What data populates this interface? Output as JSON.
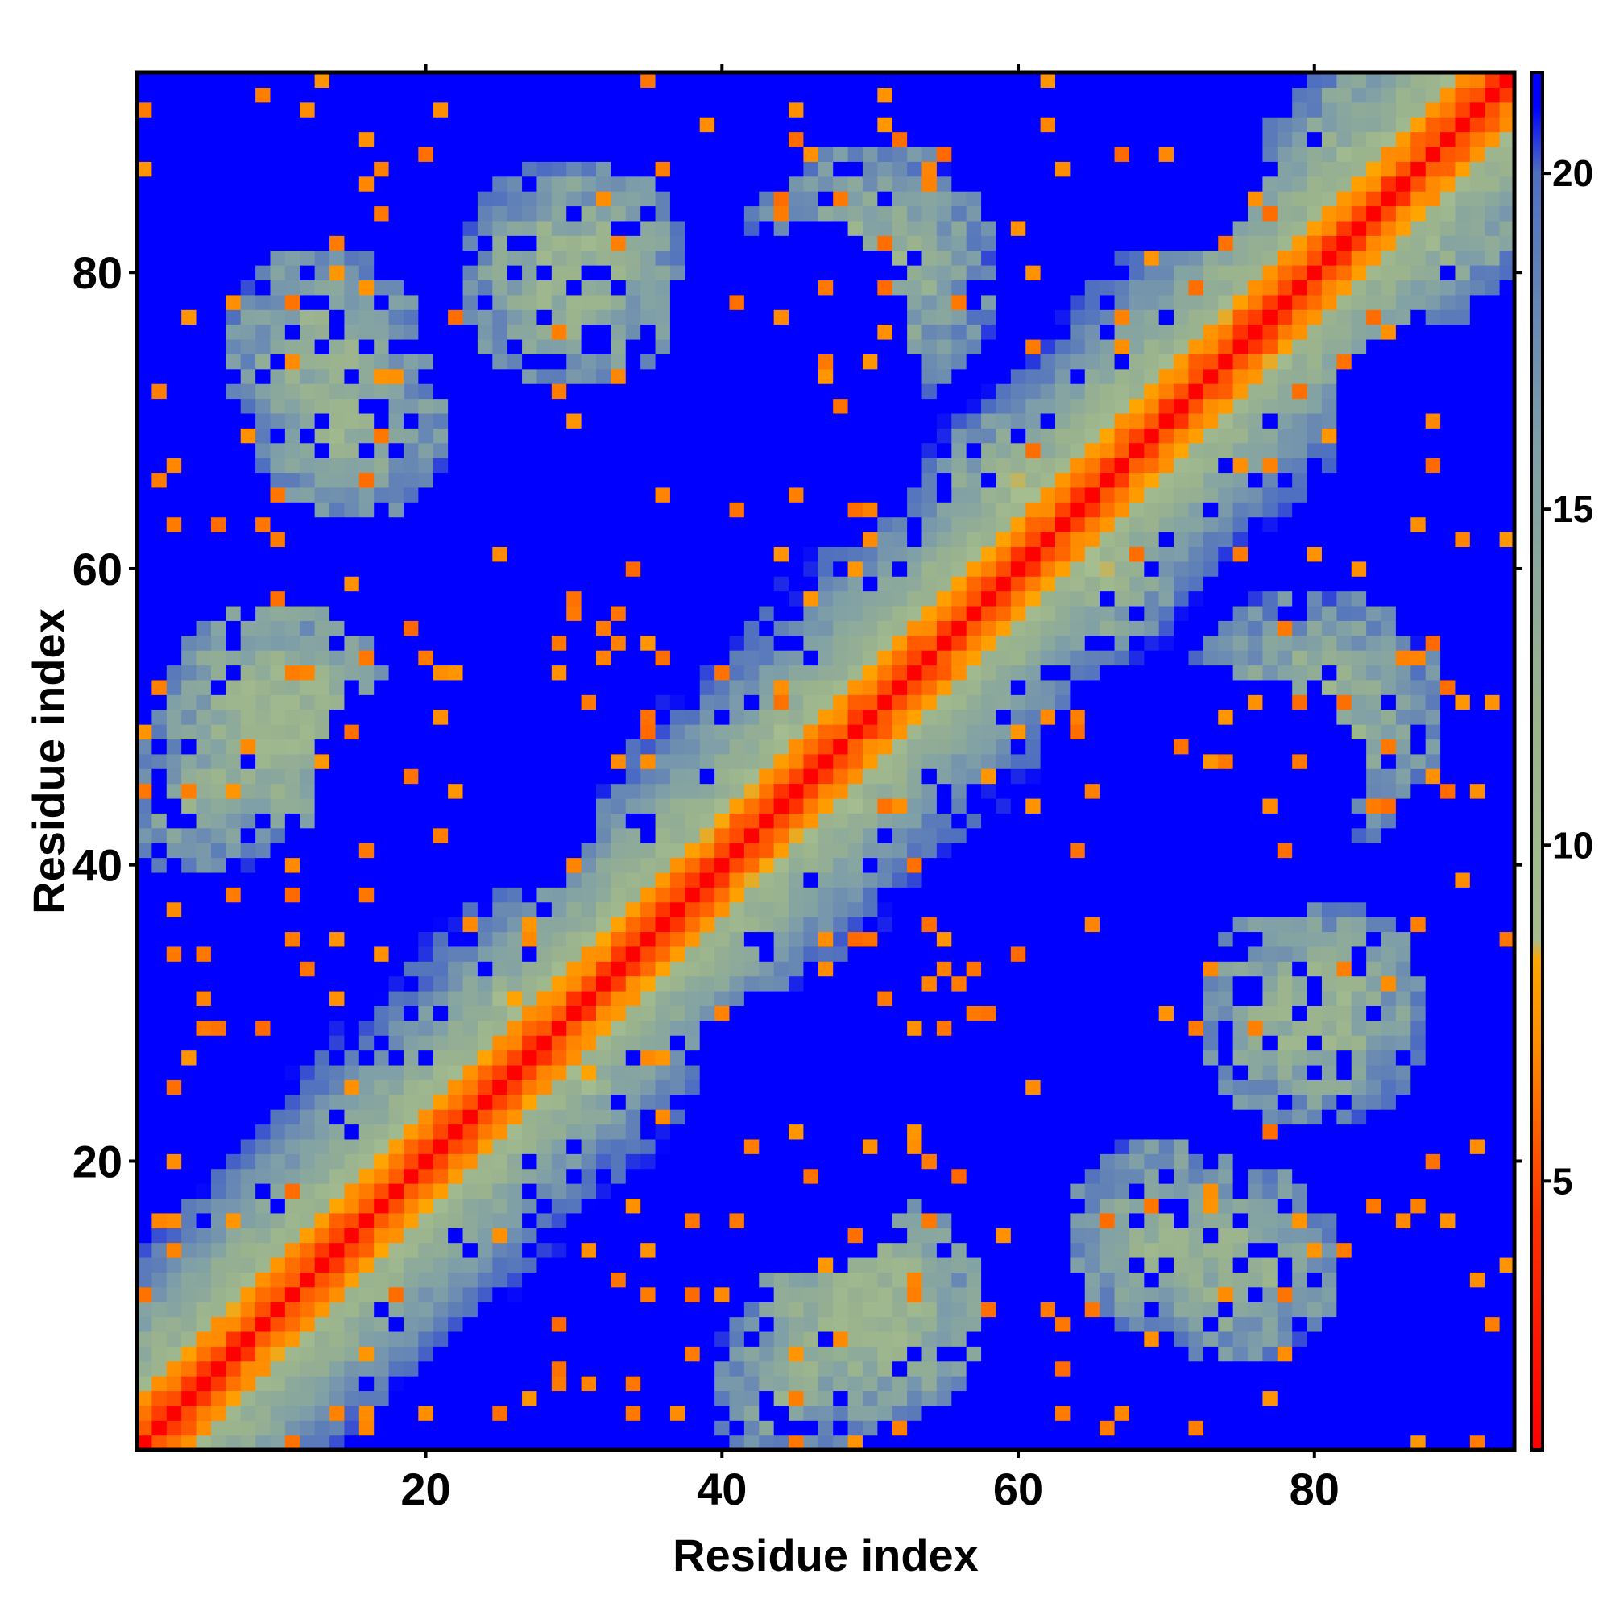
{
  "chart_data": {
    "type": "heatmap",
    "title": "",
    "xlabel": "Residue index",
    "ylabel": "Residue index",
    "n_residues": 93,
    "xlim": [
      1,
      93
    ],
    "ylim": [
      1,
      93
    ],
    "x_ticks": [
      20,
      40,
      60,
      80
    ],
    "y_ticks": [
      20,
      40,
      60,
      80
    ],
    "colorbar": {
      "range": [
        1,
        21.5
      ],
      "ticks": [
        5,
        10,
        15,
        20
      ],
      "stops": [
        {
          "value": 1,
          "color": "#ff0000"
        },
        {
          "value": 4.5,
          "color": "#ff3300"
        },
        {
          "value": 7,
          "color": "#ff8c00"
        },
        {
          "value": 8.3,
          "color": "#ffa500"
        },
        {
          "value": 8.6,
          "color": "#a6bd8f"
        },
        {
          "value": 12,
          "color": "#9ab38e"
        },
        {
          "value": 16,
          "color": "#7f9fa8"
        },
        {
          "value": 20,
          "color": "#4f6fc0"
        },
        {
          "value": 21,
          "color": "#0000ff"
        }
      ]
    },
    "matrix_description": "Symmetric residue-residue distance map (Angstrom); values >= 21 rendered as saturated blue",
    "diagonal_band_halfwidth": 3,
    "near_diagonal_width": 9,
    "contact_blobs": [
      {
        "i": 10,
        "j": 50,
        "dist": 9.5,
        "spread": 8
      },
      {
        "i": 13,
        "j": 75,
        "dist": 11,
        "spread": 7
      },
      {
        "i": 5,
        "j": 45,
        "dist": 12,
        "spread": 6
      },
      {
        "i": 50,
        "j": 80,
        "dist": 11,
        "spread": 9
      },
      {
        "i": 80,
        "j": 30,
        "dist": 10.5,
        "spread": 8
      },
      {
        "i": 70,
        "j": 15,
        "dist": 11,
        "spread": 7
      },
      {
        "i": 85,
        "j": 88,
        "dist": 9,
        "spread": 6
      },
      {
        "i": 60,
        "j": 65,
        "dist": 10,
        "spread": 6
      },
      {
        "i": 26,
        "j": 30,
        "dist": 9,
        "spread": 4
      },
      {
        "i": 45,
        "j": 48,
        "dist": 9,
        "spread": 4
      }
    ],
    "empty_regions": [
      {
        "i": 45,
        "j": 70,
        "r": 9
      },
      {
        "i": 25,
        "j": 45,
        "r": 7
      },
      {
        "i": 75,
        "j": 45,
        "r": 8
      },
      {
        "i": 45,
        "j": 20,
        "r": 8
      },
      {
        "i": 90,
        "j": 70,
        "r": 7
      },
      {
        "i": 70,
        "j": 88,
        "r": 7
      },
      {
        "i": 88,
        "j": 10,
        "r": 6
      },
      {
        "i": 5,
        "j": 88,
        "r": 6
      },
      {
        "i": 5,
        "j": 25,
        "r": 5
      },
      {
        "i": 30,
        "j": 5,
        "r": 6
      }
    ]
  }
}
